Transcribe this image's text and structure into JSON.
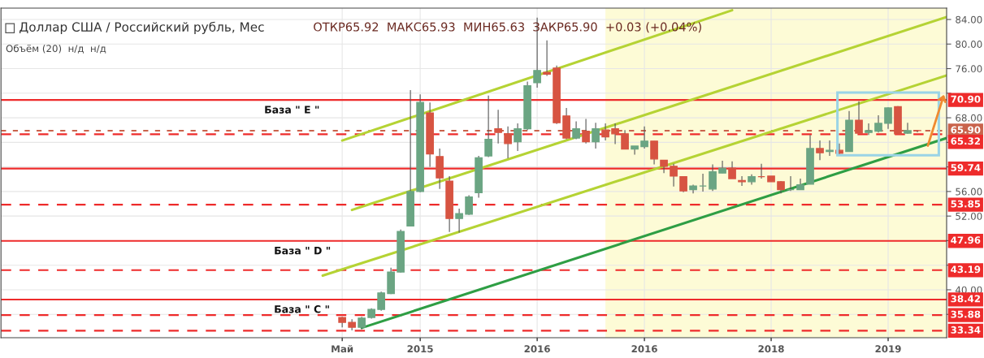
{
  "chart_data": {
    "type": "candlestick",
    "title": "Доллар США / Российский рубль, Мес",
    "subtitle": "ОТКР65.92  МАКС65.93  МИН65.63  ЗАКР65.90  +0.03 (+0.04%)",
    "annotations": [
      "Объём (20)  н/д  н/д",
      {
        "text": "База \" E \"",
        "x": "2013-09",
        "y": 70.9
      },
      {
        "text": "База \" D \"",
        "x": "2013-10",
        "y": 47.96
      },
      {
        "text": "База \" C \"",
        "x": "2013-10",
        "y": 38.42
      }
    ],
    "x": [
      "2014-05",
      "2014-06",
      "2014-07",
      "2014-08",
      "2014-09",
      "2014-10",
      "2014-11",
      "2014-12",
      "2015-01",
      "2015-02",
      "2015-03",
      "2015-04",
      "2015-05",
      "2015-06",
      "2015-07",
      "2015-08",
      "2015-09",
      "2015-10",
      "2015-11",
      "2015-12",
      "2016-01",
      "2016-02",
      "2016-03",
      "2016-04",
      "2016-05",
      "2016-06",
      "2016-07",
      "2016-08",
      "2016-09",
      "2016-10",
      "2016-11",
      "2016-12",
      "2017-01",
      "2017-02",
      "2017-03",
      "2017-04",
      "2017-05",
      "2017-06",
      "2017-07",
      "2017-08",
      "2017-09",
      "2017-10",
      "2017-11",
      "2017-12",
      "2018-01",
      "2018-02",
      "2018-03",
      "2018-04",
      "2018-05",
      "2018-06",
      "2018-07",
      "2018-08",
      "2018-09",
      "2018-10",
      "2018-11",
      "2018-12",
      "2019-01",
      "2019-02",
      "2019-03",
      "2019-04"
    ],
    "ohlc": [
      [
        35.5,
        35.6,
        33.9,
        34.7
      ],
      [
        34.7,
        35.2,
        33.4,
        33.9
      ],
      [
        33.9,
        35.6,
        33.6,
        35.4
      ],
      [
        35.5,
        37.0,
        35.3,
        36.8
      ],
      [
        36.8,
        39.7,
        36.6,
        39.5
      ],
      [
        39.4,
        43.6,
        39.3,
        42.9
      ],
      [
        42.9,
        49.8,
        42.8,
        49.5
      ],
      [
        50.4,
        72.5,
        50.3,
        56.0
      ],
      [
        56.0,
        71.8,
        55.9,
        70.5
      ],
      [
        68.8,
        70.5,
        60.0,
        62.1
      ],
      [
        61.7,
        63.0,
        56.4,
        58.2
      ],
      [
        57.7,
        58.5,
        49.4,
        51.6
      ],
      [
        51.6,
        53.2,
        49.3,
        52.4
      ],
      [
        52.3,
        55.4,
        52.2,
        55.1
      ],
      [
        55.8,
        61.8,
        55.0,
        61.5
      ],
      [
        61.8,
        71.6,
        61.6,
        64.5
      ],
      [
        66.2,
        69.3,
        63.8,
        65.6
      ],
      [
        65.4,
        66.6,
        61.4,
        63.8
      ],
      [
        64.1,
        67.1,
        62.6,
        66.2
      ],
      [
        66.2,
        73.9,
        66.0,
        73.2
      ],
      [
        73.7,
        84.3,
        72.9,
        75.7
      ],
      [
        75.4,
        80.6,
        74.8,
        75.1
      ],
      [
        76.1,
        76.5,
        67.0,
        67.2
      ],
      [
        68.3,
        69.6,
        64.5,
        64.7
      ],
      [
        64.7,
        67.4,
        64.5,
        66.2
      ],
      [
        65.8,
        67.8,
        63.8,
        64.1
      ],
      [
        64.1,
        67.2,
        63.0,
        66.2
      ],
      [
        66.0,
        67.1,
        64.3,
        64.9
      ],
      [
        66.2,
        67.1,
        63.7,
        65.4
      ],
      [
        65.4,
        66.0,
        62.9,
        62.9
      ],
      [
        62.9,
        63.4,
        62.0,
        63.4
      ],
      [
        63.3,
        66.6,
        63.0,
        64.2
      ],
      [
        64.2,
        64.2,
        60.4,
        61.3
      ],
      [
        61.1,
        61.1,
        59.0,
        60.1
      ],
      [
        60.1,
        60.5,
        56.8,
        58.5
      ],
      [
        58.4,
        58.5,
        55.9,
        56.1
      ],
      [
        56.3,
        57.1,
        55.7,
        56.9
      ],
      [
        56.9,
        58.9,
        56.0,
        56.9
      ],
      [
        56.4,
        60.4,
        56.1,
        59.2
      ],
      [
        59.0,
        61.0,
        59.0,
        59.8
      ],
      [
        59.8,
        60.9,
        58.1,
        58.1
      ],
      [
        57.8,
        58.5,
        56.9,
        57.6
      ],
      [
        57.6,
        58.8,
        57.1,
        58.4
      ],
      [
        58.4,
        60.5,
        58.1,
        58.4
      ],
      [
        58.5,
        58.5,
        57.6,
        57.6
      ],
      [
        57.6,
        57.7,
        55.7,
        56.3
      ],
      [
        56.3,
        58.5,
        56.1,
        56.3
      ],
      [
        56.3,
        58.1,
        56.3,
        57.1
      ],
      [
        57.2,
        65.2,
        57.2,
        63.0
      ],
      [
        63.0,
        64.3,
        61.1,
        62.3
      ],
      [
        62.5,
        64.3,
        61.8,
        62.7
      ],
      [
        62.7,
        63.8,
        61.8,
        62.2
      ],
      [
        62.5,
        69.1,
        62.5,
        67.6
      ],
      [
        67.6,
        70.7,
        65.5,
        65.5
      ],
      [
        65.6,
        67.1,
        65.2,
        65.9
      ],
      [
        65.8,
        68.4,
        65.6,
        67.1
      ],
      [
        67.1,
        69.7,
        66.2,
        69.6
      ],
      [
        69.8,
        69.9,
        65.4,
        65.4
      ],
      [
        65.5,
        67.2,
        65.4,
        65.9
      ],
      [
        65.92,
        65.93,
        65.63,
        65.9
      ]
    ],
    "colors": [
      "#d75442",
      "#d75442",
      "#6ba583",
      "#6ba583",
      "#6ba583",
      "#6ba583",
      "#6ba583",
      "#6ba583",
      "#6ba583",
      "#d75442",
      "#d75442",
      "#d75442",
      "#6ba583",
      "#6ba583",
      "#6ba583",
      "#6ba583",
      "#d75442",
      "#d75442",
      "#6ba583",
      "#6ba583",
      "#6ba583",
      "#d75442",
      "#d75442",
      "#d75442",
      "#6ba583",
      "#d75442",
      "#6ba583",
      "#d75442",
      "#d75442",
      "#d75442",
      "#6ba583",
      "#6ba583",
      "#d75442",
      "#d75442",
      "#d75442",
      "#d75442",
      "#6ba583",
      "#6ba583",
      "#6ba583",
      "#6ba583",
      "#d75442",
      "#d75442",
      "#6ba583",
      "#d75442",
      "#d75442",
      "#d75442",
      "#6ba583",
      "#6ba583",
      "#6ba583",
      "#d75442",
      "#6ba583",
      "#d75442",
      "#6ba583",
      "#d75442",
      "#6ba583",
      "#6ba583",
      "#6ba583",
      "#d75442",
      "#6ba583",
      "#d75442"
    ],
    "series": [
      {
        "type": "line",
        "color": "#b5d334",
        "x": [
          "2014-03",
          "2019-07"
        ],
        "values": [
          42.3,
          74.9
        ]
      },
      {
        "type": "line",
        "color": "#b5d334",
        "x": [
          "2014-06",
          "2019-07"
        ],
        "values": [
          53.0,
          84.4
        ]
      },
      {
        "type": "line",
        "color": "#b5d334",
        "x": [
          "2014-05",
          "2017-09"
        ],
        "values": [
          64.3,
          85.5
        ]
      },
      {
        "type": "line",
        "color": "#2e9e44",
        "x": [
          "2014-07",
          "2019-07"
        ],
        "values": [
          33.8,
          64.7
        ]
      }
    ],
    "xlim": [
      "2011-06",
      "2019-07"
    ],
    "xticks": [
      {
        "value": "2014-05",
        "label": "Май"
      },
      {
        "value": "2015-01",
        "label": "2015"
      },
      {
        "value": "2016-01",
        "label": "2016"
      },
      {
        "value": "2016-12",
        "label": "2016"
      },
      {
        "value": "2018-01",
        "label": "2018"
      },
      {
        "value": "2019-01",
        "label": "2019"
      }
    ],
    "ylim": [
      32.2,
      85.85
    ],
    "yticks": [
      {
        "value": 36,
        "label": null
      },
      {
        "value": 40,
        "label": "40.00"
      },
      {
        "value": 44,
        "label": null
      },
      {
        "value": 48,
        "label": null
      },
      {
        "value": 52,
        "label": "52.00"
      },
      {
        "value": 56,
        "label": "56.00"
      },
      {
        "value": 60,
        "label": null
      },
      {
        "value": 64,
        "label": null
      },
      {
        "value": 68,
        "label": "68.00"
      },
      {
        "value": 72,
        "label": null
      },
      {
        "value": 76,
        "label": "76.00"
      },
      {
        "value": 80,
        "label": "80.00"
      },
      {
        "value": 84,
        "label": "84.00"
      }
    ],
    "ref_lines": [
      {
        "axis": "y",
        "value": 70.9,
        "label": "70.90",
        "color": "#ee2b2b",
        "line_style": "solid"
      },
      {
        "axis": "y",
        "value": 65.9,
        "label": "65.90",
        "color": "#c9634c",
        "line_style": "dotted"
      },
      {
        "axis": "y",
        "value": 65.32,
        "label": "65.32",
        "color": "#ee2b2b",
        "line_style": "dashed"
      },
      {
        "axis": "y",
        "value": 59.74,
        "label": "59.74",
        "color": "#ee2b2b",
        "line_style": "solid"
      },
      {
        "axis": "y",
        "value": 53.85,
        "label": "53.85",
        "color": "#ee2b2b",
        "line_style": "dashed"
      },
      {
        "axis": "y",
        "value": 47.96,
        "label": "47.96",
        "color": "#ee2b2b",
        "line_style": "solid"
      },
      {
        "axis": "y",
        "value": 43.19,
        "label": "43.19",
        "color": "#ee2b2b",
        "line_style": "dashed"
      },
      {
        "axis": "y",
        "value": 38.42,
        "label": "38.42",
        "color": "#ee2b2b",
        "line_style": "solid"
      },
      {
        "axis": "y",
        "value": 35.88,
        "label": "35.88",
        "color": "#ee2b2b",
        "line_style": "dashed"
      },
      {
        "axis": "y",
        "value": 33.34,
        "label": "33.34",
        "color": "#ee2b2b",
        "line_style": "dashed"
      }
    ],
    "bands": [
      {
        "axis": "x",
        "from": "2016-08",
        "to": "2019-07",
        "color": "#fdfbd6"
      }
    ],
    "grid": true
  }
}
